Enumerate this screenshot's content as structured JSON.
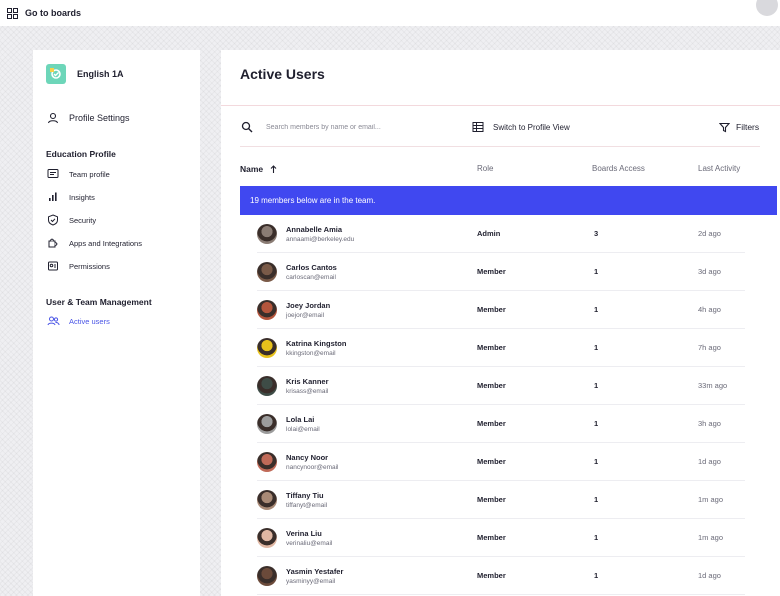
{
  "topbar": {
    "go_to_boards": "Go to boards"
  },
  "sidebar": {
    "team_name": "English 1A",
    "profile_settings": "Profile Settings",
    "education_profile_heading": "Education Profile",
    "education_items": [
      {
        "label": "Team profile",
        "icon": "team-profile-icon"
      },
      {
        "label": "Insights",
        "icon": "bar-chart-icon"
      },
      {
        "label": "Security",
        "icon": "shield-icon"
      },
      {
        "label": "Apps and Integrations",
        "icon": "puzzle-icon"
      },
      {
        "label": "Permissions",
        "icon": "permissions-icon"
      }
    ],
    "user_team_heading": "User & Team Management",
    "active_users": "Active users"
  },
  "main": {
    "title": "Active Users",
    "search_placeholder": "Search members by name or email...",
    "switch_view": "Switch to Profile View",
    "filters": "Filters",
    "columns": {
      "name": "Name",
      "role": "Role",
      "boards": "Boards Access",
      "last": "Last Activity"
    },
    "banner": "19 members below are in the team."
  },
  "users": [
    {
      "name": "Annabelle Amia",
      "email": "annaami@berkeley.edu",
      "role": "Admin",
      "boards": "3",
      "last": "2d ago",
      "avatar_color": "#8a7c74"
    },
    {
      "name": "Carlos Cantos",
      "email": "carloscan@email",
      "role": "Member",
      "boards": "1",
      "last": "3d ago",
      "avatar_color": "#7a5a48"
    },
    {
      "name": "Joey Jordan",
      "email": "joejor@email",
      "role": "Member",
      "boards": "1",
      "last": "4h ago",
      "avatar_color": "#b4553c"
    },
    {
      "name": "Katrina Kingston",
      "email": "kkingston@email",
      "role": "Member",
      "boards": "1",
      "last": "7h ago",
      "avatar_color": "#e8c21c"
    },
    {
      "name": "Kris Kanner",
      "email": "krisass@email",
      "role": "Member",
      "boards": "1",
      "last": "33m ago",
      "avatar_color": "#3e4c46"
    },
    {
      "name": "Lola Lai",
      "email": "lolai@email",
      "role": "Member",
      "boards": "1",
      "last": "3h ago",
      "avatar_color": "#9c9c9c"
    },
    {
      "name": "Nancy Noor",
      "email": "nancynoor@email",
      "role": "Member",
      "boards": "1",
      "last": "1d ago",
      "avatar_color": "#c06a58"
    },
    {
      "name": "Tiffany Tiu",
      "email": "tiffanyt@email",
      "role": "Member",
      "boards": "1",
      "last": "1m ago",
      "avatar_color": "#a98a76"
    },
    {
      "name": "Verina Liu",
      "email": "verinaliu@email",
      "role": "Member",
      "boards": "1",
      "last": "1m ago",
      "avatar_color": "#e0b7a3"
    },
    {
      "name": "Yasmin Yestafer",
      "email": "yasminyy@email",
      "role": "Member",
      "boards": "1",
      "last": "1d ago",
      "avatar_color": "#6b4a3a"
    }
  ]
}
